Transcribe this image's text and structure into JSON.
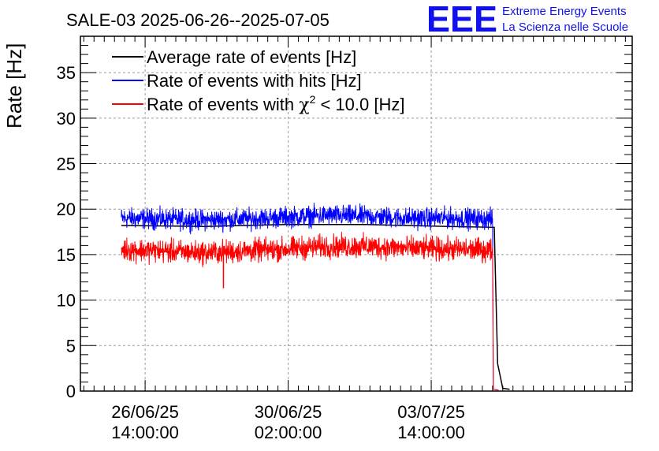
{
  "chart_data": {
    "type": "line",
    "title": "SALE-03 2025-06-26--2025-07-05",
    "logo": {
      "mark": "EEE",
      "line1": "Extreme Energy Events",
      "line2": "La Scienza nelle Scuole"
    },
    "ylabel": "Rate [Hz]",
    "xlabel": "",
    "x_axis": "time",
    "x_range": [
      "2025-06-25 00:00",
      "2025-07-08 12:00"
    ],
    "ylim": [
      0,
      39
    ],
    "yticks": [
      0,
      5,
      10,
      15,
      20,
      25,
      30,
      35
    ],
    "xticks": [
      {
        "at": "2025-06-26 14:00",
        "date": "26/06/25",
        "time": "14:00:00"
      },
      {
        "at": "2025-06-30 02:00",
        "date": "30/06/25",
        "time": "02:00:00"
      },
      {
        "at": "2025-07-03 14:00",
        "date": "03/07/25",
        "time": "14:00:00"
      }
    ],
    "grid": true,
    "legend_position": "top-left",
    "series": [
      {
        "name": "Average rate of events [Hz]",
        "color": "#000000",
        "x": [
          "2025-06-26 00:00",
          "2025-06-28 00:00",
          "2025-06-30 00:00",
          "2025-07-02 00:00",
          "2025-07-04 00:00",
          "2025-07-05 03:00",
          "2025-07-05 05:00",
          "2025-07-05 08:00",
          "2025-07-05 12:00"
        ],
        "values": [
          18.2,
          18.1,
          18.3,
          18.3,
          18.1,
          18.0,
          3.0,
          0.3,
          0.2
        ]
      },
      {
        "name": "Rate of events with hits [Hz]",
        "color": "#0000ff",
        "x": [
          "2025-06-26 00:00",
          "2025-06-27 00:00",
          "2025-06-28 00:00",
          "2025-06-29 00:00",
          "2025-06-30 00:00",
          "2025-07-01 00:00",
          "2025-07-02 00:00",
          "2025-07-03 00:00",
          "2025-07-04 00:00",
          "2025-07-05 02:00"
        ],
        "values": [
          19.0,
          18.9,
          18.8,
          18.9,
          19.1,
          19.3,
          19.2,
          19.0,
          19.0,
          18.9
        ],
        "noise": 0.8
      },
      {
        "name": "Rate of events with χ² < 10.0 [Hz]",
        "name_parts": {
          "before": "Rate of events with ",
          "chi": "χ",
          "sup": "2",
          "after": " < 10.0 [Hz]"
        },
        "color": "#ff0000",
        "x": [
          "2025-06-26 00:00",
          "2025-06-27 00:00",
          "2025-06-28 00:00",
          "2025-06-29 00:00",
          "2025-06-30 00:00",
          "2025-07-01 00:00",
          "2025-07-02 00:00",
          "2025-07-03 00:00",
          "2025-07-04 00:00",
          "2025-07-05 02:00"
        ],
        "values": [
          15.6,
          15.4,
          15.2,
          15.4,
          15.6,
          15.9,
          15.9,
          15.7,
          15.6,
          15.5
        ],
        "noise": 0.9,
        "annotations": [
          {
            "x": "2025-06-28 12:00",
            "y": 11.3
          }
        ]
      }
    ]
  }
}
